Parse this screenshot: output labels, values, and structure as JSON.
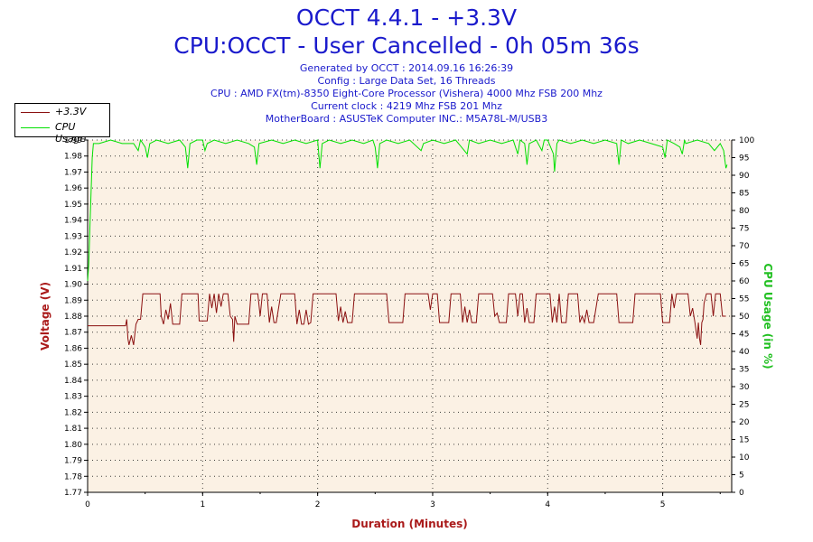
{
  "title": "OCCT 4.4.1 - +3.3V",
  "subtitle": "CPU:OCCT - User Cancelled - 0h 05m 36s",
  "info_lines": [
    "Generated by OCCT : 2014.09.16 16:26:39",
    "Config : Large Data Set, 16 Threads",
    "CPU : AMD FX(tm)-8350 Eight-Core Processor (Vishera) 4000 Mhz FSB 200 Mhz",
    "Current clock : 4219 Mhz FSB 201 Mhz",
    "MotherBoard : ASUSTeK Computer INC.: M5A78L-M/USB3"
  ],
  "legend": {
    "voltage_label": "+3.3V",
    "cpu_label": "CPU Usage"
  },
  "colors": {
    "voltage": "#8b1010",
    "cpu": "#00e000",
    "plot_bg": "#fbf1e4",
    "text": "#1a1acc"
  },
  "chart_data": {
    "type": "line",
    "xlabel": "Duration (Minutes)",
    "ylabel_left": "Voltage (V)",
    "ylabel_right": "CPU Usage (in %)",
    "xlim": [
      0,
      5.6
    ],
    "ylim_left": [
      1.77,
      1.99
    ],
    "ylim_right": [
      0,
      100
    ],
    "x_ticks": [
      "0",
      "1",
      "2",
      "3",
      "4",
      "5"
    ],
    "y_ticks_left": [
      "1.77",
      "1.78",
      "1.79",
      "1.80",
      "1.81",
      "1.82",
      "1.83",
      "1.84",
      "1.85",
      "1.86",
      "1.87",
      "1.88",
      "1.89",
      "1.90",
      "1.91",
      "1.92",
      "1.93",
      "1.94",
      "1.95",
      "1.96",
      "1.97",
      "1.98",
      "1.99"
    ],
    "y_ticks_right": [
      "0",
      "5",
      "10",
      "15",
      "20",
      "25",
      "30",
      "35",
      "40",
      "45",
      "50",
      "55",
      "60",
      "65",
      "70",
      "75",
      "80",
      "85",
      "90",
      "95",
      "100"
    ],
    "grid": true,
    "series": [
      {
        "name": "+3.3V",
        "axis": "left",
        "points": [
          [
            0,
            1.874
          ],
          [
            0.3,
            1.874
          ],
          [
            0.33,
            1.874
          ],
          [
            0.34,
            1.878
          ],
          [
            0.35,
            1.866
          ],
          [
            0.36,
            1.862
          ],
          [
            0.38,
            1.868
          ],
          [
            0.4,
            1.862
          ],
          [
            0.42,
            1.875
          ],
          [
            0.44,
            1.878
          ],
          [
            0.46,
            1.878
          ],
          [
            0.48,
            1.894
          ],
          [
            0.63,
            1.894
          ],
          [
            0.64,
            1.88
          ],
          [
            0.66,
            1.875
          ],
          [
            0.68,
            1.884
          ],
          [
            0.7,
            1.878
          ],
          [
            0.72,
            1.888
          ],
          [
            0.74,
            1.875
          ],
          [
            0.76,
            1.875
          ],
          [
            0.78,
            1.875
          ],
          [
            0.8,
            1.875
          ],
          [
            0.82,
            1.894
          ],
          [
            0.96,
            1.894
          ],
          [
            0.97,
            1.877
          ],
          [
            1.0,
            1.877
          ],
          [
            1.04,
            1.877
          ],
          [
            1.06,
            1.894
          ],
          [
            1.08,
            1.885
          ],
          [
            1.1,
            1.894
          ],
          [
            1.12,
            1.882
          ],
          [
            1.14,
            1.894
          ],
          [
            1.16,
            1.886
          ],
          [
            1.18,
            1.894
          ],
          [
            1.22,
            1.894
          ],
          [
            1.24,
            1.88
          ],
          [
            1.26,
            1.878
          ],
          [
            1.27,
            1.864
          ],
          [
            1.28,
            1.88
          ],
          [
            1.3,
            1.875
          ],
          [
            1.35,
            1.875
          ],
          [
            1.4,
            1.875
          ],
          [
            1.42,
            1.894
          ],
          [
            1.48,
            1.894
          ],
          [
            1.5,
            1.88
          ],
          [
            1.52,
            1.894
          ],
          [
            1.56,
            1.894
          ],
          [
            1.58,
            1.876
          ],
          [
            1.6,
            1.886
          ],
          [
            1.62,
            1.876
          ],
          [
            1.64,
            1.876
          ],
          [
            1.68,
            1.894
          ],
          [
            1.8,
            1.894
          ],
          [
            1.82,
            1.875
          ],
          [
            1.84,
            1.884
          ],
          [
            1.86,
            1.875
          ],
          [
            1.88,
            1.875
          ],
          [
            1.9,
            1.884
          ],
          [
            1.92,
            1.875
          ],
          [
            1.94,
            1.876
          ],
          [
            1.96,
            1.894
          ],
          [
            2.16,
            1.894
          ],
          [
            2.18,
            1.877
          ],
          [
            2.2,
            1.886
          ],
          [
            2.22,
            1.876
          ],
          [
            2.24,
            1.883
          ],
          [
            2.26,
            1.876
          ],
          [
            2.3,
            1.876
          ],
          [
            2.32,
            1.894
          ],
          [
            2.6,
            1.894
          ],
          [
            2.62,
            1.876
          ],
          [
            2.66,
            1.876
          ],
          [
            2.7,
            1.876
          ],
          [
            2.74,
            1.876
          ],
          [
            2.76,
            1.894
          ],
          [
            2.96,
            1.894
          ],
          [
            2.98,
            1.884
          ],
          [
            3.0,
            1.894
          ],
          [
            3.04,
            1.894
          ],
          [
            3.06,
            1.876
          ],
          [
            3.1,
            1.876
          ],
          [
            3.14,
            1.876
          ],
          [
            3.16,
            1.894
          ],
          [
            3.24,
            1.894
          ],
          [
            3.26,
            1.876
          ],
          [
            3.28,
            1.886
          ],
          [
            3.3,
            1.876
          ],
          [
            3.32,
            1.884
          ],
          [
            3.34,
            1.876
          ],
          [
            3.38,
            1.876
          ],
          [
            3.4,
            1.894
          ],
          [
            3.52,
            1.894
          ],
          [
            3.54,
            1.88
          ],
          [
            3.56,
            1.882
          ],
          [
            3.58,
            1.876
          ],
          [
            3.6,
            1.876
          ],
          [
            3.62,
            1.876
          ],
          [
            3.64,
            1.876
          ],
          [
            3.66,
            1.894
          ],
          [
            3.72,
            1.894
          ],
          [
            3.74,
            1.88
          ],
          [
            3.76,
            1.894
          ],
          [
            3.78,
            1.894
          ],
          [
            3.8,
            1.876
          ],
          [
            3.82,
            1.885
          ],
          [
            3.84,
            1.876
          ],
          [
            3.86,
            1.876
          ],
          [
            3.88,
            1.876
          ],
          [
            3.9,
            1.894
          ],
          [
            4.02,
            1.894
          ],
          [
            4.04,
            1.876
          ],
          [
            4.06,
            1.886
          ],
          [
            4.08,
            1.876
          ],
          [
            4.1,
            1.894
          ],
          [
            4.12,
            1.876
          ],
          [
            4.14,
            1.876
          ],
          [
            4.16,
            1.876
          ],
          [
            4.18,
            1.894
          ],
          [
            4.26,
            1.894
          ],
          [
            4.28,
            1.876
          ],
          [
            4.3,
            1.88
          ],
          [
            4.32,
            1.876
          ],
          [
            4.34,
            1.884
          ],
          [
            4.36,
            1.876
          ],
          [
            4.4,
            1.876
          ],
          [
            4.44,
            1.894
          ],
          [
            4.6,
            1.894
          ],
          [
            4.62,
            1.876
          ],
          [
            4.66,
            1.876
          ],
          [
            4.7,
            1.876
          ],
          [
            4.74,
            1.876
          ],
          [
            4.76,
            1.894
          ],
          [
            4.98,
            1.894
          ],
          [
            5.0,
            1.876
          ],
          [
            5.04,
            1.876
          ],
          [
            5.06,
            1.876
          ],
          [
            5.08,
            1.894
          ],
          [
            5.1,
            1.885
          ],
          [
            5.12,
            1.894
          ],
          [
            5.22,
            1.894
          ],
          [
            5.24,
            1.88
          ],
          [
            5.26,
            1.885
          ],
          [
            5.28,
            1.876
          ],
          [
            5.3,
            1.866
          ],
          [
            5.31,
            1.876
          ],
          [
            5.32,
            1.866
          ],
          [
            5.33,
            1.862
          ],
          [
            5.34,
            1.876
          ],
          [
            5.35,
            1.878
          ],
          [
            5.36,
            1.888
          ],
          [
            5.38,
            1.894
          ],
          [
            5.42,
            1.894
          ],
          [
            5.44,
            1.88
          ],
          [
            5.46,
            1.894
          ],
          [
            5.48,
            1.894
          ],
          [
            5.5,
            1.894
          ],
          [
            5.52,
            1.88
          ],
          [
            5.55,
            1.88
          ]
        ]
      },
      {
        "name": "CPU Usage",
        "axis": "right",
        "points": [
          [
            0,
            60
          ],
          [
            0.01,
            65
          ],
          [
            0.02,
            75
          ],
          [
            0.03,
            85
          ],
          [
            0.04,
            95
          ],
          [
            0.05,
            99
          ],
          [
            0.1,
            99
          ],
          [
            0.2,
            100
          ],
          [
            0.3,
            99
          ],
          [
            0.4,
            99
          ],
          [
            0.44,
            97
          ],
          [
            0.46,
            100
          ],
          [
            0.5,
            98
          ],
          [
            0.52,
            95
          ],
          [
            0.54,
            99
          ],
          [
            0.6,
            100
          ],
          [
            0.7,
            99
          ],
          [
            0.8,
            100
          ],
          [
            0.85,
            98
          ],
          [
            0.87,
            92
          ],
          [
            0.89,
            99
          ],
          [
            0.95,
            100
          ],
          [
            1.0,
            100
          ],
          [
            1.02,
            97
          ],
          [
            1.04,
            99
          ],
          [
            1.1,
            100
          ],
          [
            1.2,
            99
          ],
          [
            1.3,
            100
          ],
          [
            1.4,
            99
          ],
          [
            1.45,
            98
          ],
          [
            1.47,
            93
          ],
          [
            1.49,
            99
          ],
          [
            1.6,
            100
          ],
          [
            1.7,
            99
          ],
          [
            1.8,
            100
          ],
          [
            1.9,
            99
          ],
          [
            2.0,
            100
          ],
          [
            2.02,
            92
          ],
          [
            2.04,
            99
          ],
          [
            2.1,
            100
          ],
          [
            2.2,
            99
          ],
          [
            2.3,
            100
          ],
          [
            2.4,
            99
          ],
          [
            2.48,
            100
          ],
          [
            2.5,
            98
          ],
          [
            2.52,
            92
          ],
          [
            2.54,
            99
          ],
          [
            2.6,
            100
          ],
          [
            2.7,
            99
          ],
          [
            2.8,
            100
          ],
          [
            2.9,
            97
          ],
          [
            2.92,
            99
          ],
          [
            3.0,
            100
          ],
          [
            3.1,
            99
          ],
          [
            3.2,
            100
          ],
          [
            3.3,
            96
          ],
          [
            3.32,
            100
          ],
          [
            3.4,
            99
          ],
          [
            3.5,
            100
          ],
          [
            3.6,
            99
          ],
          [
            3.7,
            100
          ],
          [
            3.74,
            96
          ],
          [
            3.76,
            100
          ],
          [
            3.8,
            99
          ],
          [
            3.82,
            93
          ],
          [
            3.84,
            99
          ],
          [
            3.9,
            100
          ],
          [
            3.95,
            97
          ],
          [
            3.97,
            100
          ],
          [
            4.0,
            100
          ],
          [
            4.05,
            96
          ],
          [
            4.06,
            91
          ],
          [
            4.08,
            99
          ],
          [
            4.1,
            100
          ],
          [
            4.2,
            99
          ],
          [
            4.3,
            100
          ],
          [
            4.4,
            99
          ],
          [
            4.5,
            100
          ],
          [
            4.6,
            99
          ],
          [
            4.62,
            93
          ],
          [
            4.64,
            100
          ],
          [
            4.7,
            99
          ],
          [
            4.8,
            100
          ],
          [
            4.9,
            99
          ],
          [
            5.0,
            98
          ],
          [
            5.02,
            95
          ],
          [
            5.04,
            100
          ],
          [
            5.1,
            99
          ],
          [
            5.15,
            98
          ],
          [
            5.17,
            96
          ],
          [
            5.19,
            100
          ],
          [
            5.2,
            99
          ],
          [
            5.3,
            100
          ],
          [
            5.4,
            99
          ],
          [
            5.45,
            97
          ],
          [
            5.5,
            99
          ],
          [
            5.53,
            97
          ],
          [
            5.55,
            92
          ],
          [
            5.56,
            93
          ]
        ]
      }
    ]
  }
}
